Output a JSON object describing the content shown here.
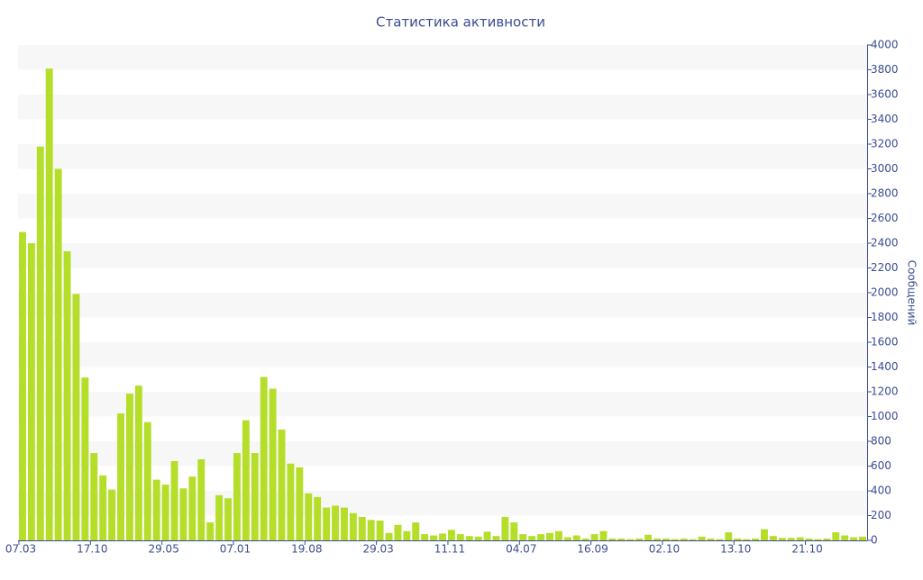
{
  "chart_data": {
    "type": "bar",
    "title": "Статистика активности",
    "y_axis_label": "Сообщений",
    "categories": [
      "07.03",
      null,
      null,
      null,
      null,
      null,
      null,
      null,
      "17.10",
      null,
      null,
      null,
      null,
      null,
      null,
      null,
      "29.05",
      null,
      null,
      null,
      null,
      null,
      null,
      null,
      "07.01",
      null,
      null,
      null,
      null,
      null,
      null,
      null,
      "19.08",
      null,
      null,
      null,
      null,
      null,
      null,
      null,
      "29.03",
      null,
      null,
      null,
      null,
      null,
      null,
      null,
      "11.11",
      null,
      null,
      null,
      null,
      null,
      null,
      null,
      "04.07",
      null,
      null,
      null,
      null,
      null,
      null,
      null,
      "16.09",
      null,
      null,
      null,
      null,
      null,
      null,
      null,
      "02.10",
      null,
      null,
      null,
      null,
      null,
      null,
      null,
      "13.10",
      null,
      null,
      null,
      null,
      null,
      null,
      null,
      "21.10",
      null,
      null,
      null,
      null,
      null,
      null
    ],
    "values": [
      2490,
      2400,
      3180,
      3810,
      3000,
      2335,
      1990,
      1315,
      705,
      525,
      410,
      1025,
      1185,
      1250,
      955,
      490,
      450,
      640,
      420,
      515,
      655,
      145,
      365,
      340,
      705,
      970,
      705,
      1320,
      1225,
      895,
      620,
      590,
      380,
      350,
      265,
      280,
      265,
      220,
      190,
      165,
      160,
      60,
      125,
      75,
      145,
      50,
      40,
      55,
      85,
      50,
      35,
      30,
      70,
      35,
      190,
      145,
      50,
      35,
      50,
      60,
      75,
      25,
      40,
      15,
      50,
      75,
      15,
      15,
      10,
      15,
      45,
      15,
      15,
      10,
      15,
      10,
      30,
      15,
      10,
      65,
      15,
      10,
      15,
      90,
      35,
      20,
      20,
      25,
      15,
      10,
      15,
      65,
      40,
      25,
      30
    ],
    "color": "#b5de2a",
    "ylim": [
      0,
      4000
    ],
    "yticks": [
      0,
      200,
      400,
      600,
      800,
      1000,
      1200,
      1400,
      1600,
      1800,
      2000,
      2200,
      2400,
      2600,
      2800,
      3000,
      3200,
      3400,
      3600,
      3800,
      4000
    ],
    "grid": true
  }
}
